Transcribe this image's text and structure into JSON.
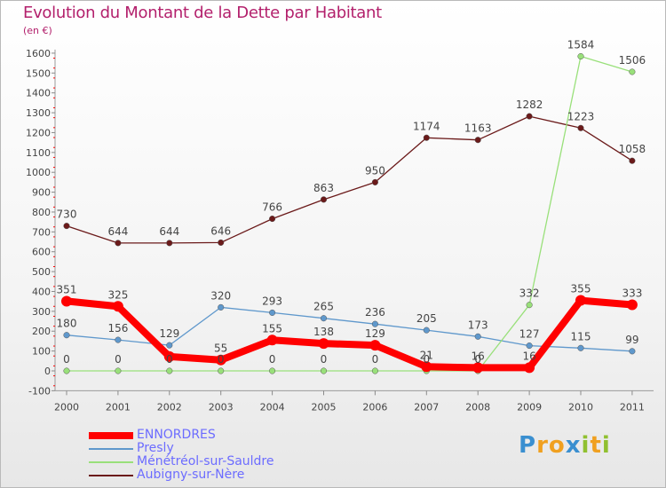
{
  "title": "Evolution du Montant de la Dette par Habitant",
  "subtitle": "(en €)",
  "colors": {
    "title": "#b3206c",
    "ennordres": "#ff0000",
    "presly": "#5f98cc",
    "menetreol": "#99e07a",
    "aubigny": "#6b1a1a",
    "legend_text": "#6c6cff"
  },
  "chart_data": {
    "type": "line",
    "x": [
      "2000",
      "2001",
      "2002",
      "2003",
      "2004",
      "2005",
      "2006",
      "2007",
      "2008",
      "2009",
      "2010",
      "2011"
    ],
    "ylim": [
      -100,
      1600
    ],
    "yticks": [
      -100,
      0,
      100,
      200,
      300,
      400,
      500,
      600,
      700,
      800,
      900,
      1000,
      1100,
      1200,
      1300,
      1400,
      1500,
      1600
    ],
    "grid": false,
    "legend_position": "bottom-left",
    "series": [
      {
        "name": "ENNORDRES",
        "values": [
          351,
          325,
          72,
          55,
          155,
          138,
          129,
          21,
          16,
          16,
          355,
          333
        ],
        "labels": [
          "351",
          "325",
          "",
          "55",
          "155",
          "138",
          "129",
          "21",
          "16",
          "16",
          "355",
          "333"
        ]
      },
      {
        "name": "Presly",
        "values": [
          180,
          156,
          129,
          320,
          293,
          265,
          236,
          205,
          173,
          127,
          115,
          99
        ],
        "labels": [
          "180",
          "156",
          "129",
          "320",
          "293",
          "265",
          "236",
          "205",
          "173",
          "127",
          "115",
          "99"
        ]
      },
      {
        "name": "Ménétréol-sur-Sauldre",
        "values": [
          0,
          0,
          0,
          0,
          0,
          0,
          0,
          0,
          0,
          332,
          1584,
          1506
        ],
        "labels": [
          "0",
          "0",
          "0",
          "0",
          "0",
          "0",
          "0",
          "0",
          "0",
          "332",
          "1584",
          "1506"
        ]
      },
      {
        "name": "Aubigny-sur-Nère",
        "values": [
          730,
          644,
          644,
          646,
          766,
          863,
          950,
          1174,
          1163,
          1282,
          1223,
          1058
        ],
        "labels": [
          "730",
          "644",
          "644",
          "646",
          "766",
          "863",
          "950",
          "1174",
          "1163",
          "1282",
          "1223",
          "1058"
        ]
      }
    ]
  },
  "logo": {
    "letters": [
      "P",
      "r",
      "o",
      "x",
      "i",
      "t",
      "i"
    ],
    "colors": [
      "#3a8fd0",
      "#f0a020",
      "#f0a020",
      "#3a8fd0",
      "#90c030",
      "#f0a020",
      "#90c030"
    ]
  }
}
